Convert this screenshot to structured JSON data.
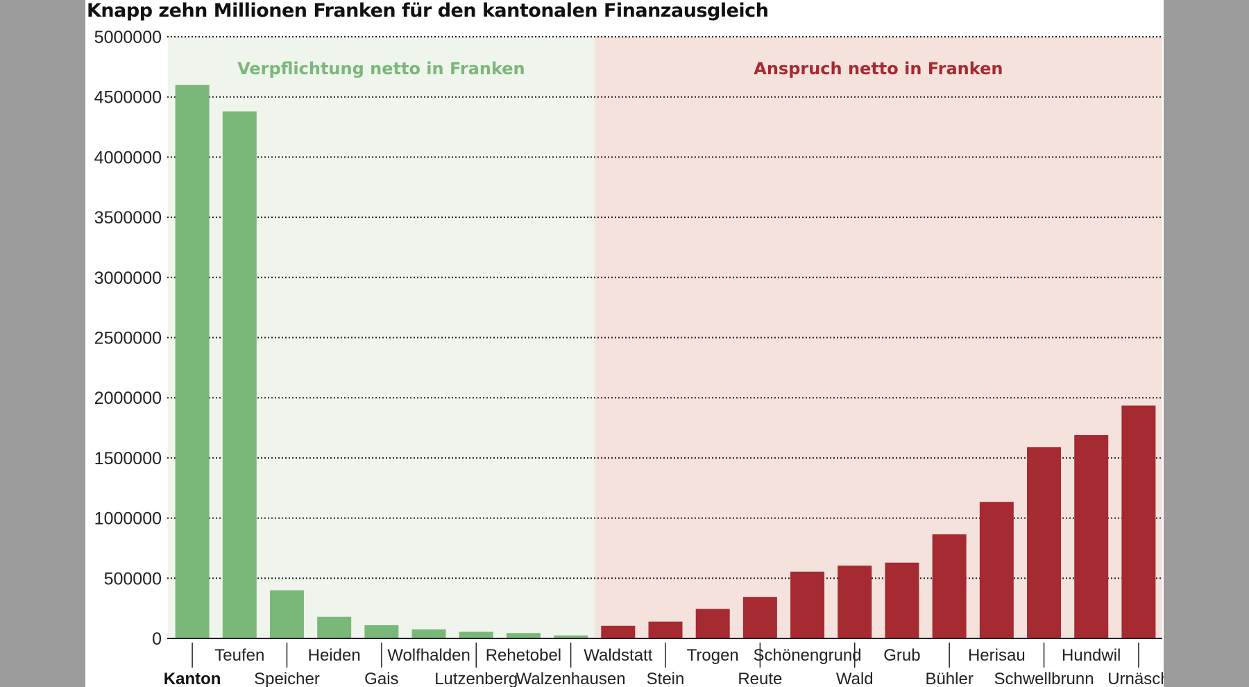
{
  "chart_data": {
    "type": "bar",
    "title": "Knapp zehn Millionen Franken für den kantonalen Finanzausgleich",
    "xlabel": "",
    "ylabel": "",
    "ylim": [
      0,
      5000000
    ],
    "yticks": [
      0,
      500000,
      1000000,
      1500000,
      2000000,
      2500000,
      3000000,
      3500000,
      4000000,
      4500000,
      5000000
    ],
    "ytick_labels": [
      "0",
      "500000",
      "1000000",
      "1500000",
      "2000000",
      "2500000",
      "3000000",
      "3500000",
      "4000000",
      "4500000",
      "5000000"
    ],
    "grid": true,
    "categories": [
      "Kanton",
      "Teufen",
      "Speicher",
      "Heiden",
      "Gais",
      "Wolfhalden",
      "Lutzenberg",
      "Rehetobel",
      "Walzenhausen",
      "Waldstatt",
      "Stein",
      "Trogen",
      "Reute",
      "Schönengrund",
      "Wald",
      "Grub",
      "Bühler",
      "Herisau",
      "Schwellbrunn",
      "Hundwil",
      "Urnäsch"
    ],
    "values": [
      4600000,
      4380000,
      400000,
      180000,
      110000,
      75000,
      55000,
      45000,
      25000,
      105000,
      140000,
      245000,
      345000,
      555000,
      605000,
      630000,
      865000,
      1135000,
      1590000,
      1690000,
      1935000
    ],
    "regions": [
      {
        "label": "Verpflichtung netto in Franken",
        "from": 0,
        "to": 8,
        "bar_color": "#7ab87a",
        "bg_color": "#eff4ec",
        "text_color": "#7ab87a"
      },
      {
        "label": "Anspruch netto in Franken",
        "from": 9,
        "to": 20,
        "bar_color": "#a52a32",
        "bg_color": "#f5e2dc",
        "text_color": "#a52a32"
      }
    ],
    "bold_categories": [
      "Kanton"
    ]
  }
}
